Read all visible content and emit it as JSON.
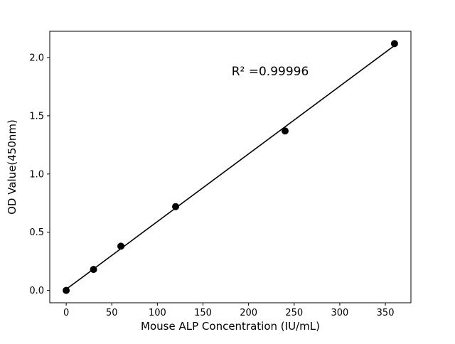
{
  "chart_data": {
    "type": "scatter",
    "x": [
      0,
      30,
      60,
      120,
      240,
      360
    ],
    "y": [
      0.0,
      0.18,
      0.38,
      0.72,
      1.37,
      2.12
    ],
    "fit_line": {
      "slope": 0.005816,
      "intercept": 0.0098,
      "x_start": 0,
      "x_end": 360
    },
    "annotation": {
      "text": "R² =0.99996",
      "x": 224,
      "y": 1.88
    },
    "xlabel": "Mouse ALP Concentration (IU/mL)",
    "ylabel": "OD Value(450nm)",
    "xticks": [
      0,
      50,
      100,
      150,
      200,
      250,
      300,
      350
    ],
    "xtick_labels": [
      "0",
      "50",
      "100",
      "150",
      "200",
      "250",
      "300",
      "350"
    ],
    "yticks": [
      0.0,
      0.5,
      1.0,
      1.5,
      2.0
    ],
    "ytick_labels": [
      "0.0",
      "0.5",
      "1.0",
      "1.5",
      "2.0"
    ],
    "xlim": [
      -18,
      378
    ],
    "ylim": [
      -0.106,
      2.226
    ],
    "grid": false,
    "legend": null,
    "marker_color": "#000000",
    "line_color": "#000000",
    "axis_color": "#000000",
    "background_color": "#ffffff"
  }
}
